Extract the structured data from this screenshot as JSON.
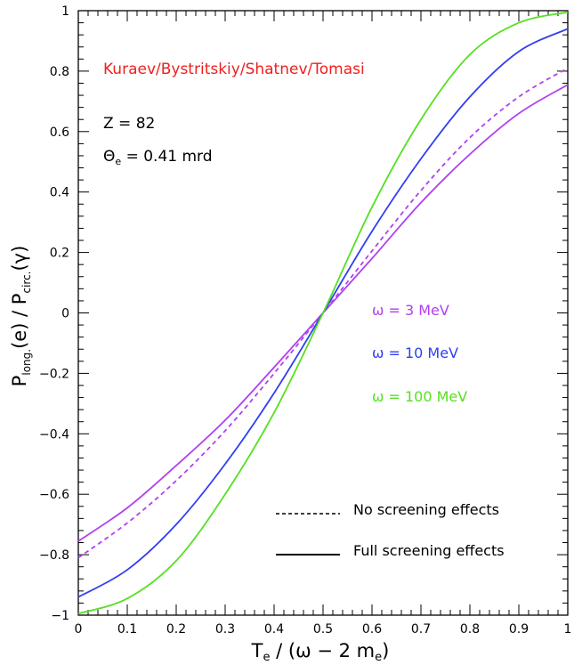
{
  "chart_data": {
    "type": "line",
    "xlabel": {
      "main": "T",
      "sub": "e",
      "rest": " / (ω − 2 m",
      "sub2": "e",
      "close": ")"
    },
    "ylabel": {
      "p1": "P",
      "s1": "long.",
      "m1": "(e) / P",
      "s2": "circ.",
      "m2": "(γ)"
    },
    "xlim": [
      0,
      1
    ],
    "ylim": [
      -1,
      1
    ],
    "x_ticks": [
      "0",
      "0.1",
      "0.2",
      "0.3",
      "0.4",
      "0.5",
      "0.6",
      "0.7",
      "0.8",
      "0.9",
      "1"
    ],
    "y_ticks": [
      "−1",
      "−0.8",
      "−0.6",
      "−0.4",
      "−0.2",
      "0",
      "0.2",
      "0.4",
      "0.6",
      "0.8",
      "1"
    ],
    "annotations": {
      "authors": "Kuraev/Bystritskiy/Shatnev/Tomasi",
      "z_label": "Z = 82",
      "theta": {
        "sym": "Θ",
        "sub": "e",
        "rest": " = 0.41 mrd"
      }
    },
    "legend_energy": [
      {
        "label": "ω = 3 MeV",
        "color": "#b040f0"
      },
      {
        "label": "ω = 10 MeV",
        "color": "#2f3ff0"
      },
      {
        "label": "ω = 100 MeV",
        "color": "#55e020"
      }
    ],
    "legend_style": [
      {
        "label": "No screening effects",
        "dash": true
      },
      {
        "label": "Full screening effects",
        "dash": false
      }
    ],
    "series": [
      {
        "name": "ω = 3 MeV, no screening",
        "color": "#b040f0",
        "dashed": true,
        "x": [
          0,
          0.1,
          0.2,
          0.3,
          0.4,
          0.5,
          0.6,
          0.7,
          0.8,
          0.9,
          1
        ],
        "y": [
          -0.81,
          -0.695,
          -0.555,
          -0.39,
          -0.2,
          0.0,
          0.205,
          0.405,
          0.58,
          0.715,
          0.81
        ]
      },
      {
        "name": "ω = 3 MeV, full screening",
        "color": "#b040f0",
        "dashed": false,
        "x": [
          0,
          0.1,
          0.2,
          0.3,
          0.4,
          0.5,
          0.6,
          0.7,
          0.8,
          0.9,
          1
        ],
        "y": [
          -0.755,
          -0.645,
          -0.505,
          -0.355,
          -0.18,
          0.0,
          0.18,
          0.365,
          0.525,
          0.66,
          0.755
        ]
      },
      {
        "name": "ω = 10 MeV",
        "color": "#2f3ff0",
        "dashed": false,
        "x": [
          0,
          0.1,
          0.2,
          0.3,
          0.4,
          0.5,
          0.6,
          0.7,
          0.8,
          0.9,
          1
        ],
        "y": [
          -0.94,
          -0.85,
          -0.7,
          -0.5,
          -0.265,
          0.0,
          0.27,
          0.51,
          0.715,
          0.865,
          0.94
        ]
      },
      {
        "name": "ω = 100 MeV",
        "color": "#55e020",
        "dashed": false,
        "x": [
          0,
          0.1,
          0.2,
          0.3,
          0.4,
          0.5,
          0.6,
          0.7,
          0.8,
          0.9,
          1
        ],
        "y": [
          -0.995,
          -0.945,
          -0.82,
          -0.6,
          -0.33,
          0.0,
          0.35,
          0.64,
          0.855,
          0.96,
          0.995
        ]
      }
    ]
  }
}
